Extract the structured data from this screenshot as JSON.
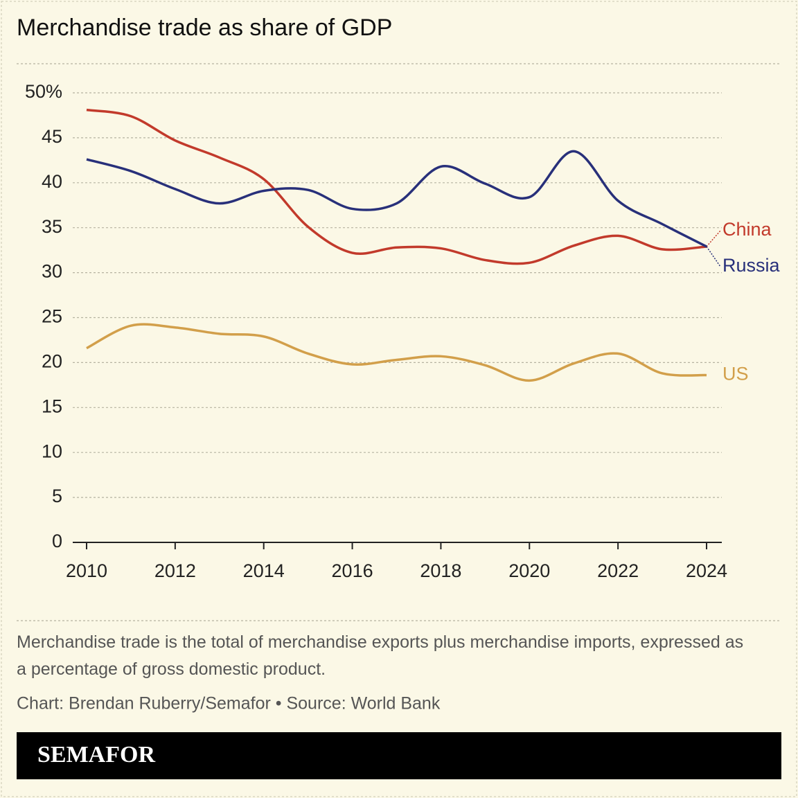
{
  "chart_data": {
    "type": "line",
    "title": "Merchandise trade as share of GDP",
    "x": [
      2010,
      2011,
      2012,
      2013,
      2014,
      2015,
      2016,
      2017,
      2018,
      2019,
      2020,
      2021,
      2022,
      2023,
      2024
    ],
    "series": [
      {
        "name": "China",
        "color": "#c23a2b",
        "values": [
          48.1,
          47.4,
          44.7,
          42.8,
          40.4,
          35.1,
          32.2,
          32.8,
          32.7,
          31.4,
          31.1,
          33.0,
          34.1,
          32.6,
          32.9
        ]
      },
      {
        "name": "Russia",
        "color": "#28307a",
        "values": [
          42.6,
          41.3,
          39.3,
          37.7,
          39.1,
          39.2,
          37.1,
          37.7,
          41.8,
          39.9,
          38.4,
          43.5,
          38.0,
          35.4,
          32.9
        ]
      },
      {
        "name": "US",
        "color": "#d29f4a",
        "values": [
          21.6,
          24.1,
          23.9,
          23.2,
          22.9,
          21.0,
          19.8,
          20.3,
          20.7,
          19.7,
          18.0,
          19.9,
          21.0,
          18.8,
          18.6
        ]
      }
    ],
    "xlim": [
      2010,
      2024
    ],
    "xticks": [
      2010,
      2012,
      2014,
      2016,
      2018,
      2020,
      2022,
      2024
    ],
    "ylim": [
      0,
      50
    ],
    "yticks": [
      0,
      5,
      10,
      15,
      20,
      25,
      30,
      35,
      40,
      45,
      {
        "value": 50,
        "label": "50%"
      }
    ],
    "grid": true,
    "note": "Merchandise trade is the total of merchandise exports plus merchandise imports, expressed as a percentage of gross domestic product.",
    "source": "Chart: Brendan Ruberry/Semafor • Source: World Bank",
    "brand": "SEMAFOR"
  }
}
